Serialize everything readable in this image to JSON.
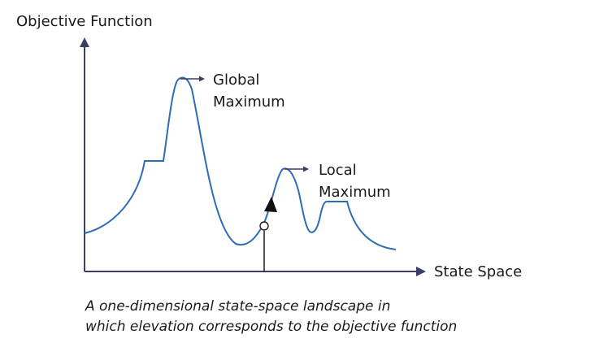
{
  "diagram": {
    "y_axis_label": "Objective Function",
    "x_axis_label": "State Space",
    "global_label_line1": "Global",
    "global_label_line2": "Maximum",
    "local_label_line1": "Local",
    "local_label_line2": "Maximum",
    "caption_line1": "A one-dimensional state-space landscape in",
    "caption_line2": "which elevation corresponds to the objective function"
  },
  "colors": {
    "curve": "#2e6db5",
    "axes": "#3b3f66",
    "text": "#1a1a1a"
  }
}
